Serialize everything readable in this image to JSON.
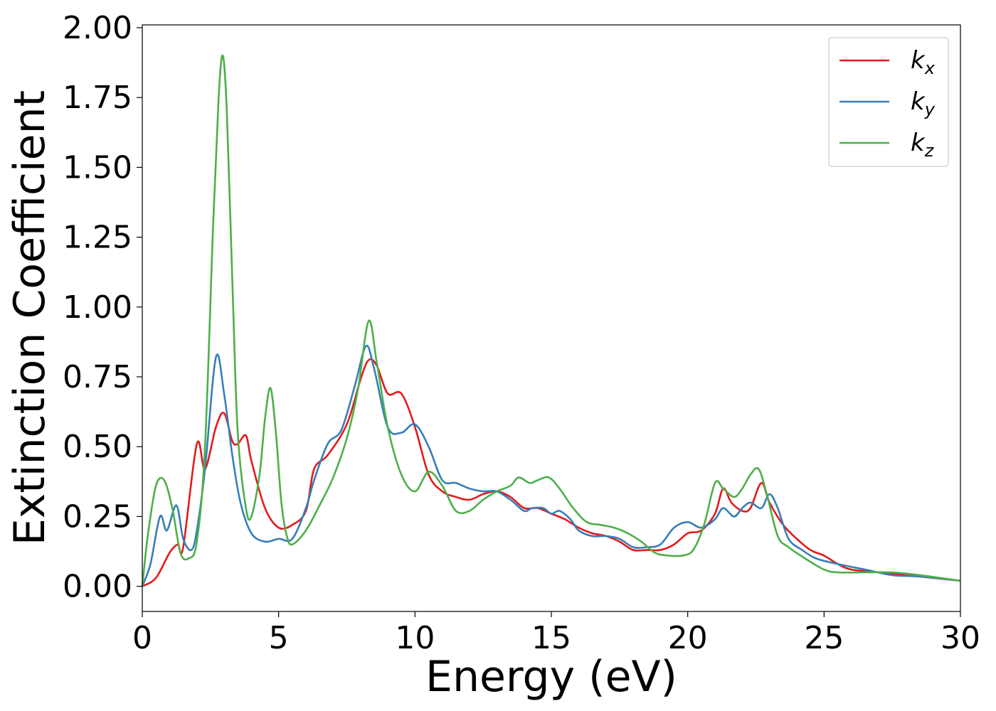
{
  "chart_data": {
    "type": "line",
    "xlabel": "Energy (eV)",
    "ylabel": "Extinction Coefficient",
    "xlim": [
      0,
      30
    ],
    "ylim": [
      -0.09,
      2.01
    ],
    "xticks": [
      0,
      5,
      10,
      15,
      20,
      25,
      30
    ],
    "xtick_labels": [
      "0",
      "5",
      "10",
      "15",
      "20",
      "25",
      "30"
    ],
    "yticks": [
      0,
      0.25,
      0.5,
      0.75,
      1.0,
      1.25,
      1.5,
      1.75,
      2.0
    ],
    "ytick_labels": [
      "0.00",
      "0.25",
      "0.50",
      "0.75",
      "1.00",
      "1.25",
      "1.50",
      "1.75",
      "2.00"
    ],
    "grid": false,
    "legend_position": "top-right",
    "series": [
      {
        "name": "k",
        "subscript": "x",
        "color": "#e41a1c",
        "x": [
          0,
          0.5,
          1.0,
          1.3,
          1.5,
          2.0,
          2.3,
          2.7,
          3.0,
          3.3,
          3.5,
          3.8,
          4.0,
          4.5,
          5.0,
          5.5,
          6.0,
          6.3,
          6.8,
          7.5,
          8.0,
          8.3,
          8.6,
          9.0,
          9.5,
          10.0,
          10.5,
          11.0,
          11.5,
          12.0,
          12.5,
          13.0,
          13.5,
          14.0,
          14.5,
          15.0,
          15.5,
          16.0,
          16.5,
          17.0,
          17.5,
          18.0,
          18.5,
          19.0,
          19.5,
          20.0,
          20.5,
          21.0,
          21.3,
          21.6,
          22.0,
          22.3,
          22.7,
          23.0,
          23.5,
          24.0,
          24.5,
          25.0,
          25.5,
          26.0,
          27.0,
          28.0,
          29.0,
          30.0
        ],
        "values": [
          0.0,
          0.03,
          0.12,
          0.15,
          0.14,
          0.51,
          0.42,
          0.57,
          0.62,
          0.52,
          0.51,
          0.54,
          0.45,
          0.28,
          0.21,
          0.22,
          0.27,
          0.42,
          0.47,
          0.58,
          0.74,
          0.81,
          0.79,
          0.69,
          0.69,
          0.57,
          0.4,
          0.34,
          0.32,
          0.31,
          0.33,
          0.34,
          0.32,
          0.28,
          0.28,
          0.26,
          0.24,
          0.21,
          0.19,
          0.18,
          0.16,
          0.13,
          0.13,
          0.13,
          0.15,
          0.19,
          0.2,
          0.26,
          0.35,
          0.3,
          0.27,
          0.28,
          0.37,
          0.3,
          0.22,
          0.17,
          0.13,
          0.11,
          0.08,
          0.06,
          0.05,
          0.04,
          0.03,
          0.02
        ]
      },
      {
        "name": "k",
        "subscript": "y",
        "color": "#377eb8",
        "x": [
          0,
          0.3,
          0.65,
          0.9,
          1.25,
          1.5,
          1.8,
          2.0,
          2.3,
          2.7,
          3.0,
          3.3,
          3.6,
          4.0,
          4.5,
          5.0,
          5.5,
          6.0,
          6.3,
          6.8,
          7.3,
          7.8,
          8.2,
          8.5,
          9.0,
          9.5,
          10.0,
          10.5,
          11.0,
          11.5,
          12.0,
          12.5,
          13.0,
          13.5,
          14.0,
          14.3,
          14.7,
          15.0,
          15.3,
          15.7,
          16.0,
          16.5,
          17.0,
          17.5,
          18.0,
          18.5,
          19.0,
          19.5,
          20.0,
          20.5,
          21.0,
          21.3,
          21.7,
          22.0,
          22.3,
          22.7,
          23.0,
          23.3,
          23.7,
          24.2,
          24.7,
          25.5,
          26.5,
          27.5,
          28.5,
          30.0
        ],
        "values": [
          0.0,
          0.08,
          0.25,
          0.2,
          0.29,
          0.17,
          0.13,
          0.2,
          0.42,
          0.82,
          0.69,
          0.47,
          0.3,
          0.19,
          0.16,
          0.17,
          0.17,
          0.28,
          0.38,
          0.51,
          0.56,
          0.72,
          0.86,
          0.78,
          0.57,
          0.55,
          0.58,
          0.5,
          0.38,
          0.37,
          0.35,
          0.34,
          0.34,
          0.31,
          0.27,
          0.28,
          0.28,
          0.26,
          0.27,
          0.24,
          0.2,
          0.18,
          0.18,
          0.17,
          0.14,
          0.14,
          0.15,
          0.21,
          0.23,
          0.21,
          0.24,
          0.28,
          0.25,
          0.28,
          0.3,
          0.28,
          0.33,
          0.28,
          0.17,
          0.13,
          0.1,
          0.08,
          0.06,
          0.04,
          0.035,
          0.02
        ]
      },
      {
        "name": "k",
        "subscript": "z",
        "color": "#4daf4a",
        "x": [
          0,
          0.2,
          0.5,
          0.8,
          1.1,
          1.4,
          1.7,
          2.0,
          2.3,
          2.6,
          2.8,
          2.95,
          3.1,
          3.3,
          3.5,
          3.8,
          4.0,
          4.3,
          4.5,
          4.7,
          4.9,
          5.1,
          5.3,
          5.5,
          6.0,
          6.5,
          7.0,
          7.5,
          7.9,
          8.3,
          8.6,
          9.0,
          9.5,
          10.0,
          10.5,
          11.0,
          11.5,
          12.0,
          12.5,
          13.0,
          13.5,
          13.8,
          14.2,
          14.5,
          14.9,
          15.3,
          15.8,
          16.3,
          16.8,
          17.3,
          17.8,
          18.3,
          18.8,
          19.3,
          19.8,
          20.2,
          20.6,
          21.0,
          21.3,
          21.7,
          22.0,
          22.3,
          22.6,
          22.9,
          23.3,
          23.7,
          24.3,
          25.0,
          25.5,
          26.5,
          27.5,
          28.5,
          30.0
        ],
        "values": [
          0.0,
          0.18,
          0.36,
          0.38,
          0.28,
          0.12,
          0.1,
          0.16,
          0.5,
          1.3,
          1.75,
          1.9,
          1.7,
          1.1,
          0.55,
          0.28,
          0.25,
          0.4,
          0.6,
          0.71,
          0.55,
          0.3,
          0.18,
          0.15,
          0.2,
          0.29,
          0.39,
          0.53,
          0.7,
          0.95,
          0.8,
          0.57,
          0.4,
          0.34,
          0.41,
          0.36,
          0.27,
          0.27,
          0.31,
          0.34,
          0.36,
          0.39,
          0.37,
          0.38,
          0.39,
          0.35,
          0.28,
          0.23,
          0.22,
          0.21,
          0.19,
          0.16,
          0.12,
          0.11,
          0.11,
          0.13,
          0.22,
          0.37,
          0.35,
          0.32,
          0.35,
          0.4,
          0.42,
          0.33,
          0.18,
          0.14,
          0.1,
          0.06,
          0.05,
          0.05,
          0.05,
          0.04,
          0.02
        ]
      }
    ]
  }
}
